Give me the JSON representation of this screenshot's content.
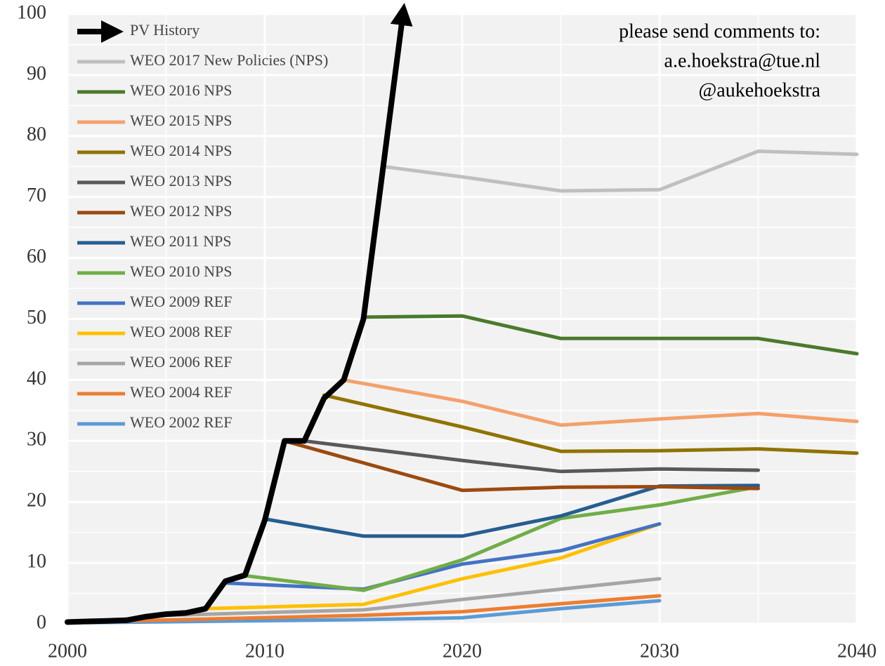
{
  "chart_data": {
    "type": "line",
    "annotation": [
      "please send comments to:",
      "a.e.hoekstra@tue.nl",
      "@aukehoekstra"
    ],
    "xlim": [
      2000,
      2040
    ],
    "xticks": [
      2000,
      2010,
      2020,
      2030,
      2040
    ],
    "xminor": [
      2005,
      2015,
      2025,
      2035
    ],
    "ylim": [
      0,
      100
    ],
    "yticks": [
      0,
      10,
      20,
      30,
      40,
      50,
      60,
      70,
      80,
      90,
      100
    ],
    "yminor": [
      5,
      15,
      25,
      35,
      45,
      55,
      65,
      75,
      85,
      95
    ],
    "grid": true,
    "legend": "upper left",
    "series": [
      {
        "name": "PV History",
        "color": "#000000",
        "arrow": true,
        "x": [
          2000,
          2001,
          2002,
          2003,
          2004,
          2005,
          2006,
          2007,
          2008,
          2009,
          2010,
          2011,
          2012,
          2013,
          2014,
          2015,
          2016,
          2017
        ],
        "values": [
          0.3,
          0.4,
          0.5,
          0.6,
          1.2,
          1.6,
          1.8,
          2.5,
          7,
          8,
          17,
          30,
          30,
          37,
          40,
          50,
          75,
          100
        ]
      },
      {
        "name": "WEO 2017 New Policies (NPS)",
        "color": "#bfbfbf",
        "x": [
          2016,
          2020,
          2025,
          2030,
          2035,
          2040
        ],
        "values": [
          75,
          73.3,
          71,
          71.2,
          77.5,
          77
        ]
      },
      {
        "name": "WEO 2016 NPS",
        "color": "#4a7a2c",
        "x": [
          2015,
          2020,
          2025,
          2030,
          2035,
          2040
        ],
        "values": [
          50.3,
          50.5,
          46.8,
          46.8,
          46.8,
          44.3
        ]
      },
      {
        "name": "WEO 2015 NPS",
        "color": "#f4a06b",
        "x": [
          2014,
          2020,
          2025,
          2030,
          2035,
          2040
        ],
        "values": [
          40,
          36.5,
          32.6,
          33.6,
          34.5,
          33.2
        ]
      },
      {
        "name": "WEO 2014 NPS",
        "color": "#8f7300",
        "x": [
          2013,
          2020,
          2025,
          2030,
          2035,
          2040
        ],
        "values": [
          37.5,
          32.3,
          28.3,
          28.4,
          28.7,
          28
        ]
      },
      {
        "name": "WEO 2013 NPS",
        "color": "#595959",
        "x": [
          2012,
          2020,
          2025,
          2030,
          2035
        ],
        "values": [
          30,
          26.8,
          25,
          25.4,
          25.2
        ]
      },
      {
        "name": "WEO 2012 NPS",
        "color": "#9c4a10",
        "x": [
          2011,
          2020,
          2025,
          2030,
          2035
        ],
        "values": [
          30,
          21.9,
          22.4,
          22.5,
          22.2
        ]
      },
      {
        "name": "WEO 2011 NPS",
        "color": "#255e91",
        "x": [
          2010,
          2015,
          2020,
          2025,
          2030,
          2035
        ],
        "values": [
          17.2,
          14.4,
          14.4,
          17.7,
          22.6,
          22.7
        ]
      },
      {
        "name": "WEO 2010 NPS",
        "color": "#70ad47",
        "x": [
          2009,
          2015,
          2020,
          2025,
          2030,
          2035
        ],
        "values": [
          7.9,
          5.5,
          10.5,
          17.3,
          19.5,
          22.5
        ]
      },
      {
        "name": "WEO 2009 REF",
        "color": "#4472c4",
        "x": [
          2008,
          2015,
          2020,
          2025,
          2030
        ],
        "values": [
          6.7,
          5.7,
          9.8,
          12,
          16.4
        ]
      },
      {
        "name": "WEO 2008 REF",
        "color": "#ffc000",
        "x": [
          2007,
          2015,
          2020,
          2025,
          2030
        ],
        "values": [
          2.5,
          3.2,
          7.4,
          10.8,
          16.4
        ]
      },
      {
        "name": "WEO 2006 REF",
        "color": "#a5a5a5",
        "x": [
          2005,
          2015,
          2020,
          2025,
          2030
        ],
        "values": [
          1.4,
          2.3,
          4,
          5.7,
          7.4
        ]
      },
      {
        "name": "WEO 2004 REF",
        "color": "#ed7d31",
        "x": [
          2003,
          2015,
          2020,
          2025,
          2030
        ],
        "values": [
          0.5,
          1.4,
          2,
          3.3,
          4.6
        ]
      },
      {
        "name": "WEO 2002 REF",
        "color": "#5b9bd5",
        "x": [
          2001,
          2015,
          2020,
          2025,
          2030
        ],
        "values": [
          0.2,
          0.7,
          1,
          2.5,
          3.8
        ]
      }
    ]
  }
}
